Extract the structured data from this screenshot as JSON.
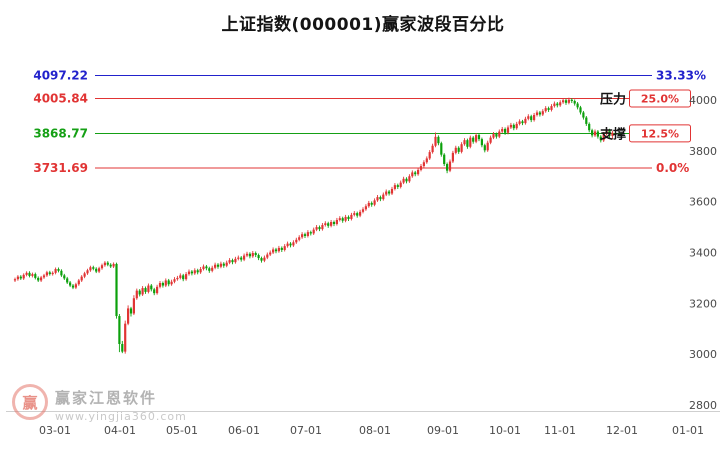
{
  "title": "上证指数(000001)赢家波段百分比",
  "watermark": {
    "logo_char": "赢",
    "brand": "赢家江恩软件",
    "url": "www.yingjia360.com"
  },
  "chart_data": {
    "type": "candlestick",
    "title": "上证指数(000001)赢家波段百分比",
    "symbol": "000001",
    "x_labels": [
      "03-01",
      "04-01",
      "05-01",
      "06-01",
      "07-01",
      "08-01",
      "09-01",
      "10-01",
      "11-01",
      "12-01",
      "01-01"
    ],
    "y_labels": [
      "4000",
      "3800",
      "3600",
      "3400",
      "3200",
      "3000",
      "2800"
    ],
    "ylim": [
      2800,
      4220
    ],
    "up_color": "#e13434",
    "down_color": "#0ba00b",
    "levels": [
      {
        "value": 4097.22,
        "label": "4097.22",
        "pct": "33.33%",
        "name": "",
        "color": "#2222cc",
        "pct_color": "#2222cc",
        "boxed": false
      },
      {
        "value": 4005.84,
        "label": "4005.84",
        "pct": "25.0%",
        "name": "压力",
        "color": "#e13434",
        "pct_color": "#e13434",
        "boxed": true
      },
      {
        "value": 3868.77,
        "label": "3868.77",
        "pct": "12.5%",
        "name": "支撑",
        "color": "#15a015",
        "pct_color": "#e13434",
        "boxed": true
      },
      {
        "value": 3731.69,
        "label": "3731.69",
        "pct": "0.0%",
        "name": "",
        "color": "#e13434",
        "pct_color": "#e13434",
        "boxed": false
      }
    ],
    "ohlc": [
      [
        3290,
        3301,
        3284,
        3295
      ],
      [
        3295,
        3311,
        3289,
        3305
      ],
      [
        3305,
        3311,
        3292,
        3298
      ],
      [
        3298,
        3318,
        3292,
        3312
      ],
      [
        3312,
        3326,
        3306,
        3320
      ],
      [
        3320,
        3326,
        3302,
        3308
      ],
      [
        3308,
        3321,
        3302,
        3315
      ],
      [
        3315,
        3321,
        3294,
        3300
      ],
      [
        3300,
        3306,
        3284,
        3290
      ],
      [
        3290,
        3308,
        3284,
        3302
      ],
      [
        3302,
        3316,
        3296,
        3310
      ],
      [
        3310,
        3328,
        3304,
        3322
      ],
      [
        3322,
        3328,
        3309,
        3315
      ],
      [
        3315,
        3326,
        3309,
        3320
      ],
      [
        3320,
        3341,
        3314,
        3335
      ],
      [
        3335,
        3341,
        3322,
        3328
      ],
      [
        3328,
        3334,
        3304,
        3310
      ],
      [
        3310,
        3316,
        3292,
        3298
      ],
      [
        3298,
        3304,
        3276,
        3282
      ],
      [
        3282,
        3288,
        3264,
        3270
      ],
      [
        3270,
        3276,
        3256,
        3262
      ],
      [
        3262,
        3281,
        3256,
        3275
      ],
      [
        3275,
        3296,
        3269,
        3290
      ],
      [
        3290,
        3311,
        3284,
        3305
      ],
      [
        3305,
        3324,
        3299,
        3318
      ],
      [
        3318,
        3336,
        3312,
        3330
      ],
      [
        3330,
        3348,
        3324,
        3342
      ],
      [
        3342,
        3348,
        3330,
        3336
      ],
      [
        3336,
        3342,
        3319,
        3325
      ],
      [
        3325,
        3344,
        3319,
        3338
      ],
      [
        3338,
        3356,
        3332,
        3350
      ],
      [
        3350,
        3366,
        3344,
        3360
      ],
      [
        3360,
        3366,
        3346,
        3352
      ],
      [
        3352,
        3358,
        3339,
        3345
      ],
      [
        3345,
        3361,
        3339,
        3355
      ],
      [
        3355,
        3360,
        3140,
        3150
      ],
      [
        3150,
        3158,
        3008,
        3040
      ],
      [
        3040,
        3052,
        3004,
        3010
      ],
      [
        3010,
        3132,
        3002,
        3120
      ],
      [
        3120,
        3192,
        3114,
        3180
      ],
      [
        3180,
        3186,
        3148,
        3160
      ],
      [
        3160,
        3232,
        3154,
        3220
      ],
      [
        3220,
        3258,
        3214,
        3250
      ],
      [
        3250,
        3256,
        3227,
        3235
      ],
      [
        3235,
        3268,
        3229,
        3260
      ],
      [
        3260,
        3266,
        3237,
        3245
      ],
      [
        3245,
        3278,
        3239,
        3270
      ],
      [
        3270,
        3276,
        3247,
        3255
      ],
      [
        3255,
        3261,
        3232,
        3240
      ],
      [
        3240,
        3273,
        3234,
        3265
      ],
      [
        3265,
        3288,
        3259,
        3280
      ],
      [
        3280,
        3286,
        3262,
        3270
      ],
      [
        3270,
        3298,
        3264,
        3290
      ],
      [
        3290,
        3296,
        3267,
        3275
      ],
      [
        3275,
        3293,
        3269,
        3285
      ],
      [
        3285,
        3303,
        3279,
        3295
      ],
      [
        3295,
        3308,
        3289,
        3300
      ],
      [
        3300,
        3318,
        3294,
        3310
      ],
      [
        3310,
        3316,
        3287,
        3295
      ],
      [
        3295,
        3323,
        3289,
        3315
      ],
      [
        3315,
        3333,
        3309,
        3325
      ],
      [
        3325,
        3331,
        3310,
        3318
      ],
      [
        3318,
        3338,
        3312,
        3330
      ],
      [
        3330,
        3336,
        3314,
        3322
      ],
      [
        3322,
        3343,
        3316,
        3335
      ],
      [
        3335,
        3353,
        3329,
        3345
      ],
      [
        3345,
        3351,
        3330,
        3338
      ],
      [
        3338,
        3344,
        3320,
        3328
      ],
      [
        3328,
        3348,
        3322,
        3340
      ],
      [
        3340,
        3360,
        3334,
        3352
      ],
      [
        3352,
        3358,
        3336,
        3344
      ],
      [
        3344,
        3364,
        3338,
        3356
      ],
      [
        3356,
        3362,
        3340,
        3348
      ],
      [
        3348,
        3368,
        3342,
        3360
      ],
      [
        3360,
        3378,
        3354,
        3370
      ],
      [
        3370,
        3376,
        3354,
        3362
      ],
      [
        3362,
        3383,
        3356,
        3375
      ],
      [
        3375,
        3388,
        3369,
        3380
      ],
      [
        3380,
        3386,
        3364,
        3372
      ],
      [
        3372,
        3396,
        3366,
        3388
      ],
      [
        3388,
        3403,
        3382,
        3395
      ],
      [
        3395,
        3401,
        3377,
        3385
      ],
      [
        3385,
        3406,
        3379,
        3398
      ],
      [
        3398,
        3404,
        3382,
        3390
      ],
      [
        3390,
        3396,
        3370,
        3378
      ],
      [
        3378,
        3384,
        3360,
        3368
      ],
      [
        3368,
        3388,
        3362,
        3380
      ],
      [
        3380,
        3400,
        3374,
        3392
      ],
      [
        3392,
        3408,
        3386,
        3400
      ],
      [
        3400,
        3420,
        3394,
        3412
      ],
      [
        3412,
        3418,
        3397,
        3405
      ],
      [
        3405,
        3426,
        3399,
        3418
      ],
      [
        3418,
        3424,
        3402,
        3410
      ],
      [
        3410,
        3433,
        3404,
        3425
      ],
      [
        3425,
        3443,
        3419,
        3435
      ],
      [
        3435,
        3441,
        3420,
        3428
      ],
      [
        3428,
        3448,
        3422,
        3440
      ],
      [
        3440,
        3458,
        3434,
        3450
      ],
      [
        3450,
        3468,
        3444,
        3460
      ],
      [
        3460,
        3480,
        3454,
        3472
      ],
      [
        3472,
        3478,
        3457,
        3465
      ],
      [
        3465,
        3488,
        3459,
        3480
      ],
      [
        3480,
        3486,
        3467,
        3475
      ],
      [
        3475,
        3498,
        3469,
        3490
      ],
      [
        3490,
        3508,
        3484,
        3500
      ],
      [
        3500,
        3506,
        3484,
        3492
      ],
      [
        3492,
        3516,
        3486,
        3508
      ],
      [
        3508,
        3523,
        3502,
        3515
      ],
      [
        3515,
        3521,
        3497,
        3505
      ],
      [
        3505,
        3528,
        3499,
        3520
      ],
      [
        3520,
        3526,
        3504,
        3512
      ],
      [
        3512,
        3536,
        3506,
        3528
      ],
      [
        3528,
        3543,
        3522,
        3535
      ],
      [
        3535,
        3541,
        3517,
        3525
      ],
      [
        3525,
        3548,
        3519,
        3540
      ],
      [
        3540,
        3546,
        3524,
        3532
      ],
      [
        3532,
        3556,
        3526,
        3548
      ],
      [
        3548,
        3563,
        3542,
        3555
      ],
      [
        3555,
        3561,
        3537,
        3545
      ],
      [
        3545,
        3568,
        3539,
        3560
      ],
      [
        3560,
        3578,
        3554,
        3570
      ],
      [
        3570,
        3590,
        3564,
        3582
      ],
      [
        3582,
        3603,
        3576,
        3595
      ],
      [
        3595,
        3601,
        3580,
        3588
      ],
      [
        3588,
        3613,
        3582,
        3605
      ],
      [
        3605,
        3626,
        3599,
        3618
      ],
      [
        3618,
        3624,
        3602,
        3610
      ],
      [
        3610,
        3636,
        3604,
        3628
      ],
      [
        3628,
        3648,
        3622,
        3640
      ],
      [
        3640,
        3646,
        3624,
        3632
      ],
      [
        3632,
        3658,
        3626,
        3650
      ],
      [
        3650,
        3673,
        3644,
        3665
      ],
      [
        3665,
        3671,
        3650,
        3658
      ],
      [
        3658,
        3683,
        3652,
        3675
      ],
      [
        3675,
        3698,
        3669,
        3690
      ],
      [
        3690,
        3696,
        3672,
        3680
      ],
      [
        3680,
        3708,
        3674,
        3700
      ],
      [
        3700,
        3723,
        3694,
        3715
      ],
      [
        3715,
        3721,
        3700,
        3708
      ],
      [
        3708,
        3733,
        3702,
        3725
      ],
      [
        3725,
        3748,
        3719,
        3740
      ],
      [
        3740,
        3763,
        3734,
        3755
      ],
      [
        3755,
        3778,
        3749,
        3770
      ],
      [
        3770,
        3803,
        3764,
        3795
      ],
      [
        3795,
        3828,
        3789,
        3820
      ],
      [
        3820,
        3872,
        3814,
        3855
      ],
      [
        3855,
        3861,
        3822,
        3830
      ],
      [
        3830,
        3836,
        3777,
        3785
      ],
      [
        3785,
        3791,
        3740,
        3748
      ],
      [
        3748,
        3754,
        3712,
        3722
      ],
      [
        3722,
        3766,
        3716,
        3758
      ],
      [
        3758,
        3800,
        3752,
        3792
      ],
      [
        3792,
        3820,
        3786,
        3812
      ],
      [
        3812,
        3818,
        3788,
        3796
      ],
      [
        3796,
        3834,
        3790,
        3826
      ],
      [
        3826,
        3850,
        3820,
        3842
      ],
      [
        3842,
        3848,
        3808,
        3816
      ],
      [
        3816,
        3860,
        3810,
        3852
      ],
      [
        3852,
        3858,
        3828,
        3836
      ],
      [
        3836,
        3870,
        3830,
        3862
      ],
      [
        3862,
        3868,
        3838,
        3846
      ],
      [
        3846,
        3852,
        3814,
        3822
      ],
      [
        3822,
        3828,
        3794,
        3802
      ],
      [
        3802,
        3840,
        3796,
        3832
      ],
      [
        3832,
        3860,
        3826,
        3852
      ],
      [
        3852,
        3874,
        3846,
        3866
      ],
      [
        3866,
        3872,
        3848,
        3856
      ],
      [
        3856,
        3884,
        3850,
        3876
      ],
      [
        3876,
        3894,
        3870,
        3886
      ],
      [
        3886,
        3892,
        3863,
        3871
      ],
      [
        3871,
        3900,
        3865,
        3892
      ],
      [
        3892,
        3910,
        3886,
        3902
      ],
      [
        3902,
        3908,
        3881,
        3889
      ],
      [
        3889,
        3914,
        3883,
        3906
      ],
      [
        3906,
        3924,
        3900,
        3916
      ],
      [
        3916,
        3922,
        3901,
        3909
      ],
      [
        3909,
        3934,
        3903,
        3926
      ],
      [
        3926,
        3944,
        3920,
        3936
      ],
      [
        3936,
        3942,
        3913,
        3921
      ],
      [
        3921,
        3949,
        3915,
        3941
      ],
      [
        3941,
        3959,
        3935,
        3951
      ],
      [
        3951,
        3957,
        3935,
        3943
      ],
      [
        3943,
        3964,
        3937,
        3956
      ],
      [
        3956,
        3976,
        3950,
        3968
      ],
      [
        3968,
        3974,
        3953,
        3961
      ],
      [
        3961,
        3984,
        3955,
        3976
      ],
      [
        3976,
        3994,
        3970,
        3986
      ],
      [
        3986,
        3992,
        3971,
        3979
      ],
      [
        3979,
        3999,
        3973,
        3991
      ],
      [
        3991,
        4007,
        3985,
        3999
      ],
      [
        3999,
        4005,
        3981,
        3989
      ],
      [
        3989,
        4009,
        3983,
        4001
      ],
      [
        4001,
        4007,
        3988,
        3996
      ],
      [
        3996,
        4002,
        3978,
        3986
      ],
      [
        3986,
        3992,
        3963,
        3971
      ],
      [
        3971,
        3977,
        3943,
        3951
      ],
      [
        3951,
        3957,
        3923,
        3931
      ],
      [
        3931,
        3937,
        3898,
        3906
      ],
      [
        3906,
        3912,
        3873,
        3881
      ],
      [
        3881,
        3887,
        3853,
        3861
      ],
      [
        3861,
        3884,
        3855,
        3876
      ],
      [
        3876,
        3882,
        3848,
        3856
      ],
      [
        3856,
        3862,
        3833,
        3841
      ],
      [
        3841,
        3874,
        3835,
        3866
      ],
      [
        3866,
        3889,
        3860,
        3881
      ],
      [
        3881,
        3887,
        3851,
        3859
      ],
      [
        3859,
        3879,
        3845,
        3871
      ]
    ]
  }
}
